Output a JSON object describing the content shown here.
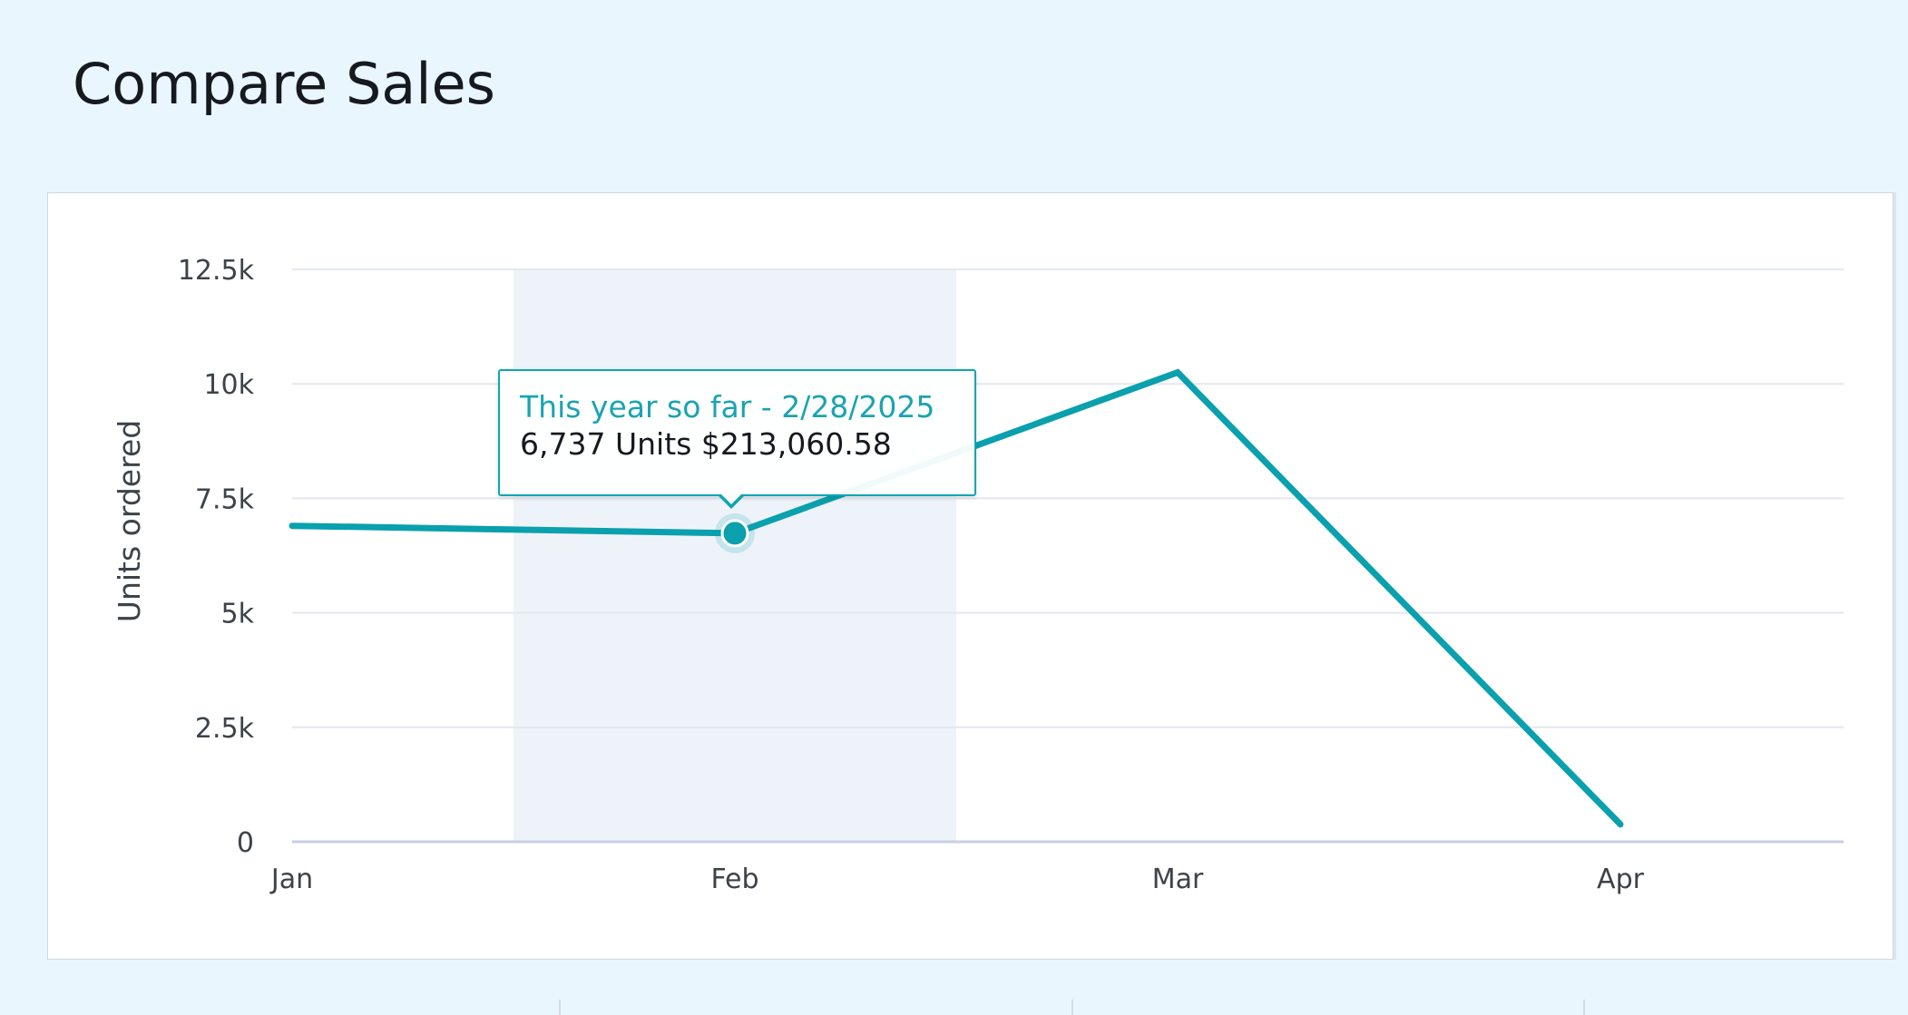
{
  "page": {
    "title": "Compare Sales"
  },
  "chart_data": {
    "type": "line",
    "ylabel": "Units ordered",
    "categories": [
      "Jan",
      "Feb",
      "Mar",
      "Apr"
    ],
    "y_ticks": [
      0,
      2500,
      5000,
      7500,
      10000,
      12500
    ],
    "y_tick_labels": [
      "0",
      "2.5k",
      "5k",
      "7.5k",
      "10k",
      "12.5k"
    ],
    "ylim": [
      0,
      12500
    ],
    "grid": true,
    "highlighted_category": "Feb",
    "series": [
      {
        "values": [
          6900,
          6737,
          10250,
          380
        ],
        "color": "#0aa0ad"
      }
    ],
    "tooltip": {
      "title": "This year so far - 2/28/2025",
      "value": "6,737 Units $213,060.58"
    }
  },
  "colors": {
    "series": "#0aa0ad",
    "tooltip_title": "#1aa3b2",
    "highlight_band": "#eef3fa",
    "grid": "#e4e8ee",
    "axis": "#c9cde6"
  }
}
